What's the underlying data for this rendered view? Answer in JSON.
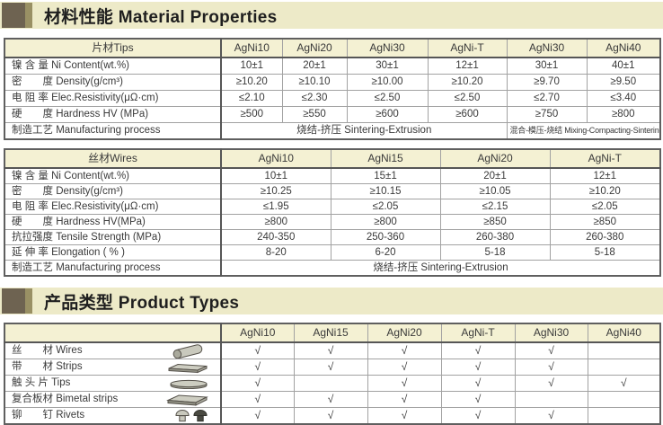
{
  "colors": {
    "band_bg": "#edeac8",
    "marker_dark": "#6e6351",
    "marker_olive": "#999064",
    "header_row_bg": "#f4f1d3",
    "border_dark": "#5f5f5f",
    "text": "#3a3a3a"
  },
  "sections": [
    {
      "title": "材料性能 Material Properties"
    },
    {
      "title": "产品类型 Product Types"
    }
  ],
  "tips_table": {
    "header": [
      "片材Tips",
      "AgNi10",
      "AgNi20",
      "AgNi30",
      "AgNi-T",
      "AgNi30",
      "AgNi40"
    ],
    "rows": [
      {
        "label": "镍 含 量 Ni Content(wt.%)",
        "values": [
          "10±1",
          "20±1",
          "30±1",
          "12±1",
          "30±1",
          "40±1"
        ]
      },
      {
        "label": "密　　度 Density(g/cm³)",
        "values": [
          "≥10.20",
          "≥10.10",
          "≥10.00",
          "≥10.20",
          "≥9.70",
          "≥9.50"
        ]
      },
      {
        "label": "电 阻 率 Elec.Resistivity(μΩ·cm)",
        "values": [
          "≤2.10",
          "≤2.30",
          "≤2.50",
          "≤2.50",
          "≤2.70",
          "≤3.40"
        ]
      },
      {
        "label": "硬　　度 Hardness HV (MPa)",
        "values": [
          "≥500",
          "≥550",
          "≥600",
          "≥600",
          "≥750",
          "≥800"
        ]
      }
    ],
    "process_row": {
      "label": "制造工艺 Manufacturing process",
      "spans": [
        {
          "text": "烧结-挤压 Sintering-Extrusion",
          "cols": 4,
          "small": false
        },
        {
          "text": "混合-模压-烧结 Mixing-Compacting-Sintering",
          "cols": 2,
          "small": true
        }
      ]
    }
  },
  "wires_table": {
    "header": [
      "丝材Wires",
      "AgNi10",
      "AgNi15",
      "AgNi20",
      "AgNi-T"
    ],
    "rows": [
      {
        "label": "镍 含 量 Ni Content(wt.%)",
        "values": [
          "10±1",
          "15±1",
          "20±1",
          "12±1"
        ]
      },
      {
        "label": "密　　度 Density(g/cm³)",
        "values": [
          "≥10.25",
          "≥10.15",
          "≥10.05",
          "≥10.20"
        ]
      },
      {
        "label": "电 阻 率 Elec.Resistivity(μΩ·cm)",
        "values": [
          "≤1.95",
          "≤2.05",
          "≤2.15",
          "≤2.05"
        ]
      },
      {
        "label": "硬　　度 Hardness HV(MPa)",
        "values": [
          "≥800",
          "≥800",
          "≥850",
          "≥850"
        ]
      },
      {
        "label": "抗拉强度 Tensile Strength (MPa)",
        "values": [
          "240-350",
          "250-360",
          "260-380",
          "260-380"
        ]
      },
      {
        "label": "延 伸 率 Elongation ( % )",
        "values": [
          "8-20",
          "6-20",
          "5-18",
          "5-18"
        ]
      }
    ],
    "process_row": {
      "label": "制造工艺 Manufacturing process",
      "spans": [
        {
          "text": "烧结-挤压 Sintering-Extrusion",
          "cols": 4,
          "small": false
        }
      ]
    }
  },
  "types_table": {
    "header": [
      "",
      "AgNi10",
      "AgNi15",
      "AgNi20",
      "AgNi-T",
      "AgNi30",
      "AgNi40"
    ],
    "check_mark": "√",
    "rows": [
      {
        "label": "丝　　材 Wires",
        "icon": "wire-rod-icon",
        "checks": [
          true,
          true,
          true,
          true,
          true,
          false
        ]
      },
      {
        "label": "带　　材 Strips",
        "icon": "strip-icon",
        "checks": [
          true,
          true,
          true,
          true,
          true,
          false
        ]
      },
      {
        "label": "触 头 片 Tips",
        "icon": "tip-disc-icon",
        "checks": [
          true,
          false,
          true,
          true,
          true,
          true
        ]
      },
      {
        "label": "复合板材 Bimetal strips",
        "icon": "bimetal-strip-icon",
        "checks": [
          true,
          true,
          true,
          true,
          false,
          false
        ]
      },
      {
        "label": "铆　　钉 Rivets",
        "icon": "rivets-icon",
        "checks": [
          true,
          true,
          true,
          true,
          true,
          false
        ]
      }
    ]
  }
}
